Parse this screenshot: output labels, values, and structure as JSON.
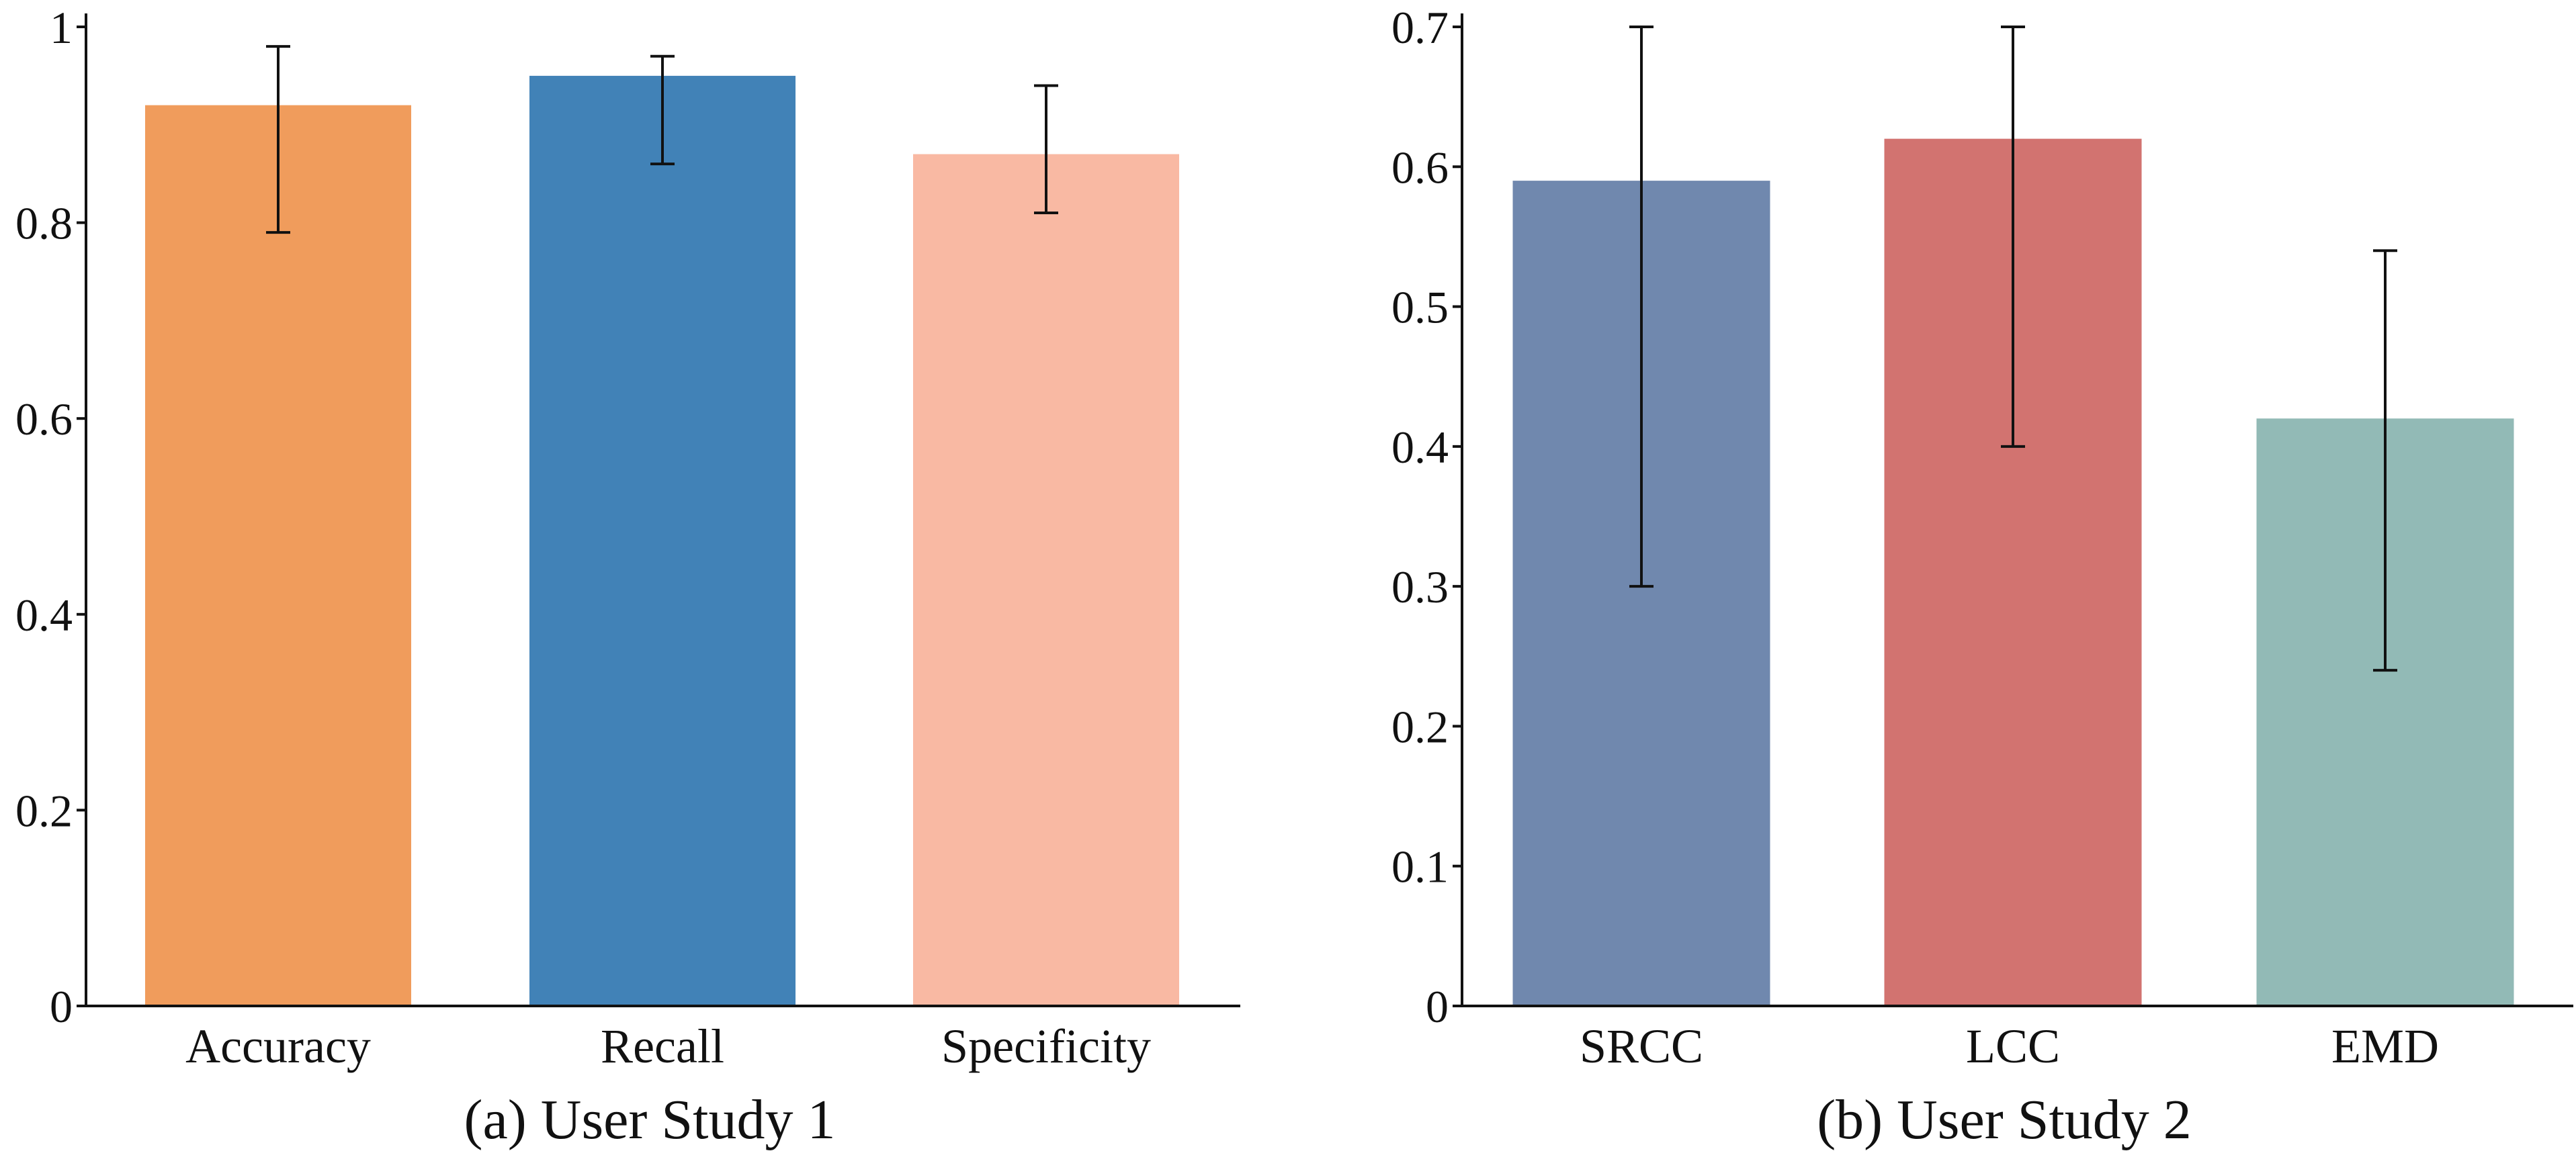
{
  "chart_data": [
    {
      "type": "bar",
      "title": "(a) User Study 1",
      "categories": [
        "Accuracy",
        "Recall",
        "Specificity"
      ],
      "values": [
        0.92,
        0.95,
        0.87
      ],
      "error_low": [
        0.79,
        0.86,
        0.81
      ],
      "error_high": [
        0.98,
        0.97,
        0.94
      ],
      "colors": [
        "#f09c5c",
        "#4182b7",
        "#f9b9a3"
      ],
      "ylim": [
        0,
        1
      ],
      "yticks": [
        0,
        0.2,
        0.4,
        0.6,
        0.8,
        1
      ],
      "ytick_labels": [
        "0",
        "0.2",
        "0.4",
        "0.6",
        "0.8",
        "1"
      ],
      "xlabel": "",
      "ylabel": "",
      "grid": false
    },
    {
      "type": "bar",
      "title": "(b) User Study 2",
      "categories": [
        "SRCC",
        "LCC",
        "EMD"
      ],
      "values": [
        0.59,
        0.62,
        0.42
      ],
      "error_low": [
        0.3,
        0.4,
        0.24
      ],
      "error_high": [
        0.7,
        0.7,
        0.54
      ],
      "colors": [
        "#7088ae",
        "#d27370",
        "#92bab6"
      ],
      "ylim": [
        0,
        0.7
      ],
      "yticks": [
        0,
        0.1,
        0.2,
        0.3,
        0.4,
        0.5,
        0.6,
        0.7
      ],
      "ytick_labels": [
        "0",
        "0.1",
        "0.2",
        "0.3",
        "0.4",
        "0.5",
        "0.6",
        "0.7"
      ],
      "xlabel": "",
      "ylabel": "",
      "grid": false
    }
  ]
}
